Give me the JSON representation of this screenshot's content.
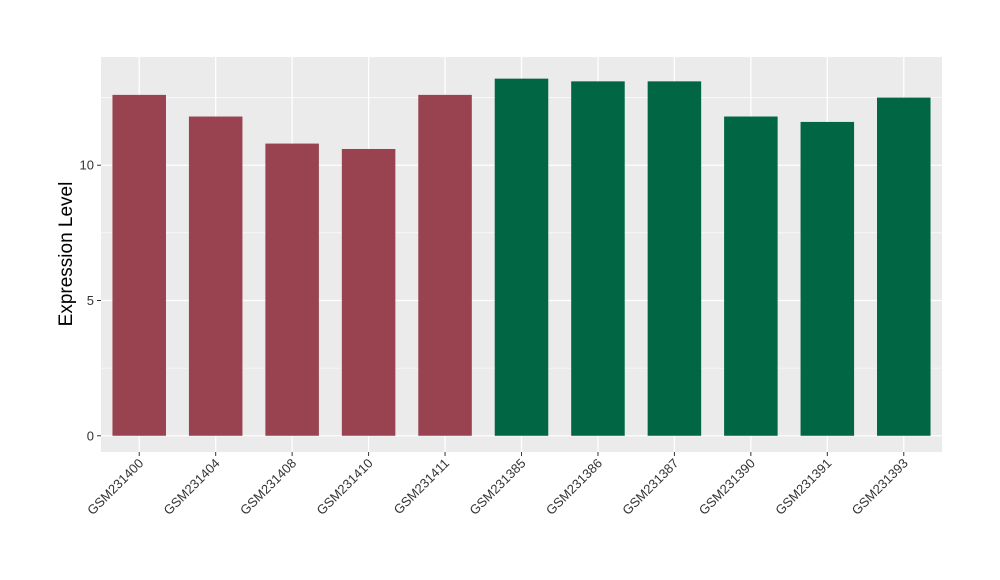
{
  "chart_data": {
    "type": "bar",
    "title": "",
    "xlabel": "",
    "ylabel": "Expression Level",
    "categories": [
      "GSM231400",
      "GSM231404",
      "GSM231408",
      "GSM231410",
      "GSM231411",
      "GSM231385",
      "GSM231386",
      "GSM231387",
      "GSM231390",
      "GSM231391",
      "GSM231393"
    ],
    "values": [
      12.6,
      11.8,
      10.8,
      10.6,
      12.6,
      13.2,
      13.1,
      13.1,
      11.8,
      11.6,
      12.5
    ],
    "bar_colors": [
      "#994350",
      "#994350",
      "#994350",
      "#994350",
      "#994350",
      "#006644",
      "#006644",
      "#006644",
      "#006644",
      "#006644",
      "#006644"
    ],
    "ylim": [
      -0.6,
      14.0
    ],
    "yticks": [
      0,
      5,
      10
    ],
    "ytick_labels": [
      "0",
      "5",
      "10"
    ],
    "grid": true,
    "panel_background": "#ebebeb",
    "grid_color": "#ffffff",
    "x_tick_label_rotation": "45 degrees"
  }
}
